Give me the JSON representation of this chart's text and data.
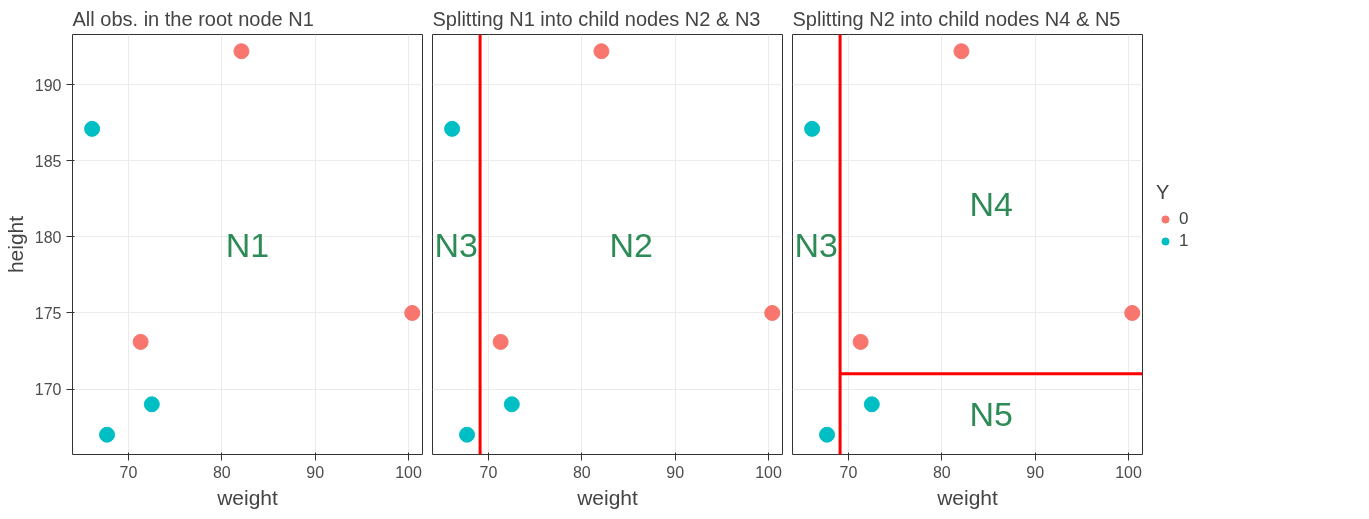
{
  "chart_data": [
    {
      "type": "scatter",
      "title": "All obs. in the root node N1",
      "xlabel": "weight",
      "ylabel": "height",
      "xlim": [
        64,
        101.5
      ],
      "ylim": [
        165.7,
        193.3
      ],
      "xticks": [
        70,
        80,
        90,
        100
      ],
      "yticks": [
        170,
        175,
        180,
        185,
        190
      ],
      "grid": true,
      "marker": "circle",
      "series": [
        {
          "color": "#f8766d",
          "x": [
            82.1,
            71.3,
            100.4
          ],
          "values": [
            192.2,
            173.1,
            175
          ]
        },
        {
          "color": "#00bfc4",
          "x": [
            66.1,
            67.7,
            72.5
          ],
          "values": [
            187.1,
            167,
            169
          ]
        }
      ],
      "annotations": [
        "N1"
      ]
    },
    {
      "type": "scatter",
      "title": "Splitting N1 into child nodes N2 & N3",
      "xlabel": "weight",
      "xlim": [
        64,
        101.5
      ],
      "ylim": [
        165.7,
        193.3
      ],
      "xticks": [
        70,
        80,
        90,
        100
      ],
      "yticks": [
        170,
        175,
        180,
        185,
        190
      ],
      "tick_labels": "x",
      "grid": true,
      "marker": "circle",
      "series": [
        {
          "color": "#f8766d",
          "x": [
            82.1,
            71.3,
            100.4
          ],
          "values": [
            192.2,
            173.1,
            175
          ]
        },
        {
          "color": "#00bfc4",
          "x": [
            66.1,
            67.7,
            72.5
          ],
          "values": [
            187.1,
            167,
            169
          ]
        }
      ],
      "ref_lines": [
        {
          "axis": "x",
          "value": 69.1,
          "color": "#ff0000"
        }
      ],
      "annotations": [
        "N3",
        "N2"
      ]
    },
    {
      "type": "scatter",
      "title": "Splitting N2 into child nodes N4 & N5",
      "xlabel": "weight",
      "xlim": [
        64,
        101.5
      ],
      "ylim": [
        165.7,
        193.3
      ],
      "xticks": [
        70,
        80,
        90,
        100
      ],
      "yticks": [
        170,
        175,
        180,
        185,
        190
      ],
      "tick_labels": "x",
      "grid": true,
      "marker": "circle",
      "legend": "right",
      "legend_title": "Y",
      "series": [
        {
          "name": "0",
          "color": "#f8766d",
          "x": [
            82.1,
            71.3,
            100.4
          ],
          "values": [
            192.2,
            173.1,
            175
          ]
        },
        {
          "name": "1",
          "color": "#00bfc4",
          "x": [
            66.1,
            67.7,
            72.5
          ],
          "values": [
            187.1,
            167,
            169
          ]
        }
      ],
      "ref_lines": [
        {
          "axis": "x",
          "value": 69.1,
          "color": "#ff0000"
        },
        {
          "axis": "y",
          "value": 171,
          "color": "#ff0000"
        }
      ],
      "annotations": [
        "N3",
        "N4",
        "N5"
      ]
    }
  ]
}
